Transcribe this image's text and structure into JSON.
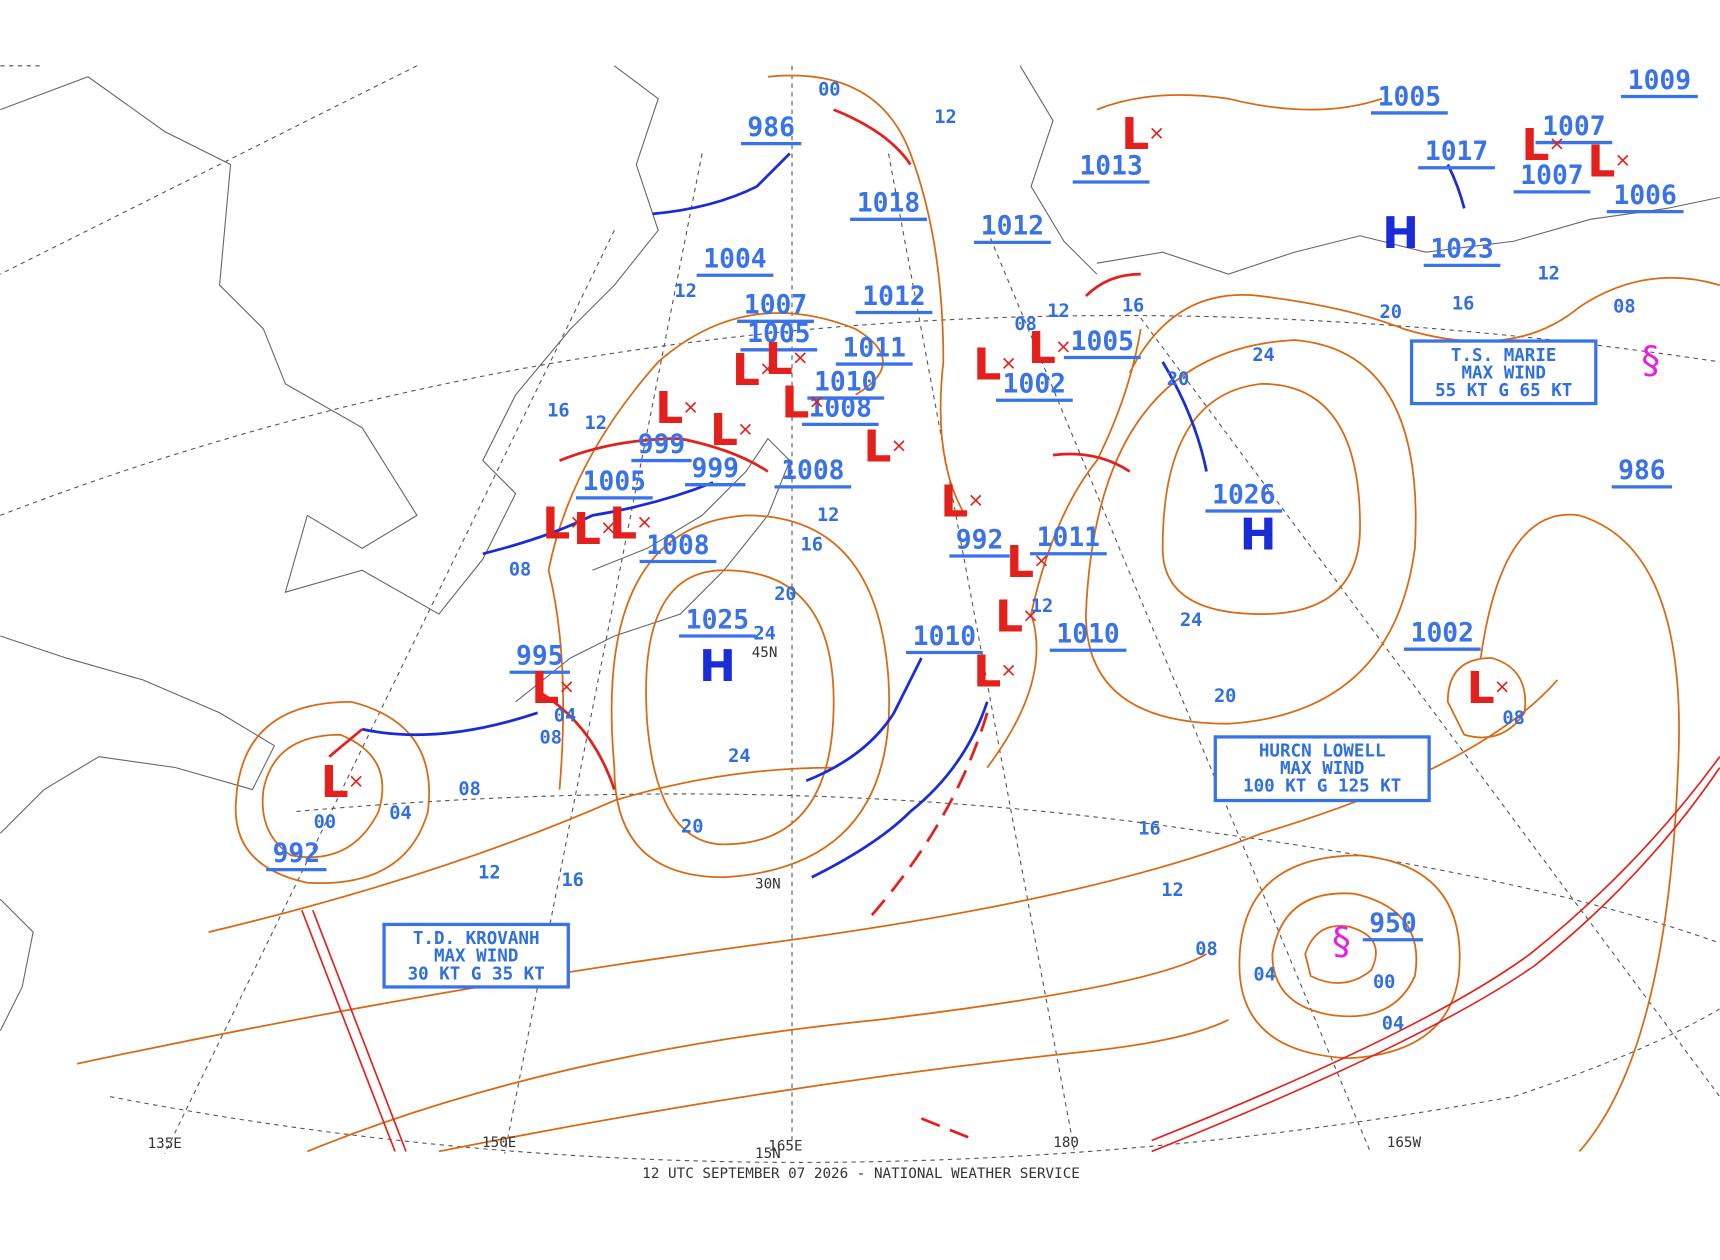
{
  "footer": "12 UTC SEPTEMBER 07 2026 - NATIONAL WEATHER SERVICE",
  "longitude_labels": [
    "135E",
    "150E",
    "165E",
    "180",
    "165W"
  ],
  "latitude_labels": [
    "45N",
    "30N",
    "15N"
  ],
  "pressure_labels": [
    "986",
    "1018",
    "1004",
    "1007",
    "1005",
    "1012",
    "1011",
    "1010",
    "1008",
    "999",
    "999",
    "1005",
    "1008",
    "1008",
    "1025",
    "995",
    "992",
    "1010",
    "1010",
    "992",
    "1011",
    "1002",
    "1005",
    "1012",
    "1013",
    "1005",
    "1017",
    "1023",
    "1007",
    "1007",
    "1006",
    "1009",
    "1026",
    "1002",
    "986",
    "950"
  ],
  "centers": [
    {
      "symbol": "H"
    },
    {
      "symbol": "H"
    },
    {
      "symbol": "H"
    },
    {
      "symbol": "L"
    },
    {
      "symbol": "L"
    },
    {
      "symbol": "L"
    },
    {
      "symbol": "L"
    },
    {
      "symbol": "L"
    },
    {
      "symbol": "L"
    },
    {
      "symbol": "L"
    },
    {
      "symbol": "L"
    },
    {
      "symbol": "L"
    },
    {
      "symbol": "L"
    },
    {
      "symbol": "L"
    },
    {
      "symbol": "L"
    },
    {
      "symbol": "L"
    },
    {
      "symbol": "L"
    },
    {
      "symbol": "L"
    },
    {
      "symbol": "L"
    },
    {
      "symbol": "L"
    },
    {
      "symbol": "L"
    },
    {
      "symbol": "L"
    },
    {
      "symbol": "L"
    },
    {
      "symbol": "L"
    }
  ],
  "isobar_labels": [
    "00",
    "12",
    "12",
    "12",
    "16",
    "16",
    "12",
    "20",
    "24",
    "24",
    "20",
    "08",
    "04",
    "08",
    "08",
    "04",
    "00",
    "12",
    "16",
    "20",
    "24",
    "20",
    "24",
    "16",
    "12",
    "08",
    "20",
    "16",
    "12",
    "08",
    "16",
    "12",
    "08",
    "04",
    "00",
    "04",
    "08",
    "12"
  ],
  "storms": [
    {
      "lines": [
        "T.D. KROVANH",
        "MAX WIND",
        "30 KT G 35 KT"
      ]
    },
    {
      "lines": [
        "HURCN LOWELL",
        "MAX WIND",
        "100 KT G 125 KT"
      ]
    },
    {
      "lines": [
        "T.S. MARIE",
        "MAX WIND",
        "55 KT G 65 KT"
      ]
    }
  ]
}
